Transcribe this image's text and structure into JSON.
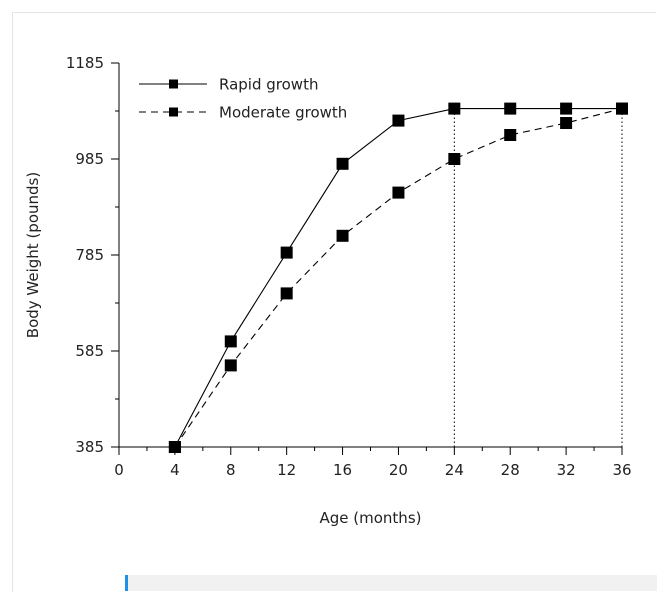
{
  "chart_data": {
    "type": "line",
    "title": "",
    "xlabel": "Age (months)",
    "ylabel": "Body Weight (pounds)",
    "xlim": [
      0,
      36
    ],
    "ylim": [
      385,
      1185
    ],
    "x_ticks": [
      0,
      4,
      8,
      12,
      16,
      20,
      24,
      28,
      32,
      36
    ],
    "y_ticks": [
      385,
      585,
      785,
      985,
      1185
    ],
    "legend_position": "top-left",
    "series": [
      {
        "name": "Rapid growth",
        "line_style": "solid",
        "marker": "square",
        "color": "#000000",
        "x": [
          4,
          8,
          12,
          16,
          20,
          24,
          28,
          32,
          36
        ],
        "y": [
          385,
          605,
          790,
          975,
          1065,
          1090,
          1090,
          1090,
          1090
        ]
      },
      {
        "name": "Moderate growth",
        "line_style": "dashed",
        "marker": "square",
        "color": "#000000",
        "x": [
          4,
          8,
          12,
          16,
          20,
          24,
          28,
          32,
          36
        ],
        "y": [
          385,
          555,
          705,
          825,
          915,
          985,
          1035,
          1060,
          1090
        ]
      }
    ],
    "reference_lines": [
      {
        "x": 24,
        "style": "dotted"
      },
      {
        "x": 36,
        "style": "dotted"
      }
    ]
  }
}
